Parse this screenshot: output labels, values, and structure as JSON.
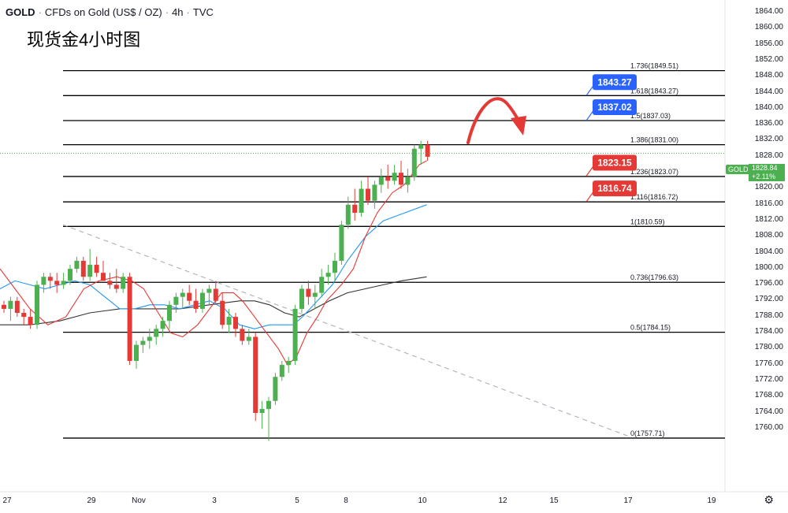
{
  "header": {
    "symbol": "GOLD",
    "name": "CFDs on Gold (US$ / OZ)",
    "interval": "4h",
    "source": "TVC",
    "title_cn": "现货金4小时图"
  },
  "price_axis": {
    "labels": [
      "1864.00",
      "1860.00",
      "1856.00",
      "1852.00",
      "1848.00",
      "1844.00",
      "1840.00",
      "1836.00",
      "1832.00",
      "1828.00",
      "1824.00",
      "1820.00",
      "1816.00",
      "1812.00",
      "1808.00",
      "1804.00",
      "1800.00",
      "1796.00",
      "1792.00",
      "1788.00",
      "1784.00",
      "1780.00",
      "1776.00",
      "1772.00",
      "1768.00",
      "1764.00",
      "1760.00"
    ],
    "last_symbol": "GOLD",
    "last_price": "1828.84",
    "last_change": "+2.11%"
  },
  "time_axis": {
    "labels": [
      "27",
      "29",
      "Nov",
      "3",
      "5",
      "8",
      "10",
      "12",
      "15",
      "17",
      "19"
    ]
  },
  "colors": {
    "up": "#4caf50",
    "down": "#e53935",
    "fib_line": "#000000",
    "ma_red": "#e53935",
    "ma_blue": "#2196f3",
    "ma_black": "#333333",
    "blue_tag": "#2962ff",
    "red_tag": "#e53935",
    "arrow": "#e53935"
  },
  "chart_data": {
    "type": "candlestick",
    "title": "现货金4小时图",
    "y_range": [
      1756,
      1866
    ],
    "fib_levels": [
      {
        "ratio": "0",
        "price": 1757.71,
        "label": "0(1757.71)"
      },
      {
        "ratio": "0.5",
        "price": 1784.15,
        "label": "0.5(1784.15)"
      },
      {
        "ratio": "0.736",
        "price": 1796.63,
        "label": "0.736(1796.63)"
      },
      {
        "ratio": "1",
        "price": 1810.59,
        "label": "1(1810.59)"
      },
      {
        "ratio": "1.116",
        "price": 1816.72,
        "label": "1.116(1816.72)"
      },
      {
        "ratio": "1.236",
        "price": 1823.07,
        "label": "1.236(1823.07)"
      },
      {
        "ratio": "1.386",
        "price": 1831.0,
        "label": "1.386(1831.00)"
      },
      {
        "ratio": "1.5",
        "price": 1837.03,
        "label": "1.5(1837.03)"
      },
      {
        "ratio": "1.618",
        "price": 1843.27,
        "label": "1.618(1843.27)"
      },
      {
        "ratio": "1.736",
        "price": 1849.51,
        "label": "1.736(1849.51)"
      }
    ],
    "price_tags": [
      {
        "text": "1843.27",
        "price": 1843.27,
        "color": "blue"
      },
      {
        "text": "1837.02",
        "price": 1837.02,
        "color": "blue"
      },
      {
        "text": "1823.15",
        "price": 1823.15,
        "color": "red"
      },
      {
        "text": "1816.74",
        "price": 1816.74,
        "color": "red"
      }
    ],
    "candles": [
      [
        1791,
        1792,
        1789,
        1790
      ],
      [
        1790,
        1793,
        1787,
        1792
      ],
      [
        1792,
        1793,
        1788,
        1789
      ],
      [
        1789,
        1790,
        1786,
        1788
      ],
      [
        1788,
        1790,
        1785,
        1786
      ],
      [
        1786,
        1797,
        1785,
        1796
      ],
      [
        1796,
        1799,
        1794,
        1798
      ],
      [
        1798,
        1799,
        1795,
        1797
      ],
      [
        1797,
        1799,
        1794,
        1796
      ],
      [
        1796,
        1799,
        1795,
        1797
      ],
      [
        1797,
        1801,
        1796,
        1800
      ],
      [
        1800,
        1803,
        1799,
        1802
      ],
      [
        1802,
        1803,
        1797,
        1798
      ],
      [
        1798,
        1805,
        1797,
        1801
      ],
      [
        1801,
        1803,
        1798,
        1799
      ],
      [
        1799,
        1802,
        1797,
        1797
      ],
      [
        1797,
        1799,
        1795,
        1796
      ],
      [
        1796,
        1800,
        1794,
        1795
      ],
      [
        1795,
        1799,
        1794,
        1798
      ],
      [
        1798,
        1799,
        1776,
        1777
      ],
      [
        1777,
        1782,
        1775,
        1781
      ],
      [
        1781,
        1783,
        1779,
        1782
      ],
      [
        1782,
        1785,
        1780,
        1783
      ],
      [
        1783,
        1786,
        1781,
        1785
      ],
      [
        1785,
        1788,
        1783,
        1787
      ],
      [
        1787,
        1792,
        1785,
        1791
      ],
      [
        1791,
        1794,
        1789,
        1793
      ],
      [
        1793,
        1795,
        1790,
        1794
      ],
      [
        1794,
        1796,
        1791,
        1792
      ],
      [
        1792,
        1795,
        1789,
        1790
      ],
      [
        1790,
        1795,
        1789,
        1794
      ],
      [
        1794,
        1796,
        1791,
        1795
      ],
      [
        1795,
        1797,
        1791,
        1792
      ],
      [
        1792,
        1794,
        1785,
        1786
      ],
      [
        1786,
        1790,
        1784,
        1788
      ],
      [
        1788,
        1789,
        1783,
        1785
      ],
      [
        1785,
        1786,
        1781,
        1782
      ],
      [
        1782,
        1785,
        1781,
        1783
      ],
      [
        1783,
        1784,
        1762,
        1764
      ],
      [
        1764,
        1767,
        1760,
        1765
      ],
      [
        1765,
        1768,
        1757,
        1767
      ],
      [
        1767,
        1774,
        1766,
        1773
      ],
      [
        1773,
        1777,
        1772,
        1776
      ],
      [
        1776,
        1778,
        1774,
        1777
      ],
      [
        1777,
        1791,
        1776,
        1790
      ],
      [
        1790,
        1796,
        1789,
        1795
      ],
      [
        1795,
        1797,
        1791,
        1793
      ],
      [
        1793,
        1796,
        1790,
        1794
      ],
      [
        1794,
        1800,
        1793,
        1798
      ],
      [
        1798,
        1801,
        1796,
        1799
      ],
      [
        1799,
        1804,
        1797,
        1802
      ],
      [
        1802,
        1812,
        1801,
        1811
      ],
      [
        1811,
        1818,
        1810,
        1816
      ],
      [
        1816,
        1820,
        1812,
        1814
      ],
      [
        1814,
        1822,
        1813,
        1820
      ],
      [
        1820,
        1823,
        1816,
        1817
      ],
      [
        1817,
        1822,
        1815,
        1821
      ],
      [
        1821,
        1825,
        1819,
        1823
      ],
      [
        1823,
        1826,
        1820,
        1822
      ],
      [
        1822,
        1826,
        1821,
        1824
      ],
      [
        1824,
        1827,
        1820,
        1821
      ],
      [
        1821,
        1825,
        1819,
        1823
      ],
      [
        1823,
        1831,
        1822,
        1830
      ],
      [
        1830,
        1832,
        1826,
        1831
      ],
      [
        1831,
        1832,
        1827,
        1828
      ]
    ],
    "ma_red": [
      [
        1800,
        0
      ],
      [
        1795,
        10
      ],
      [
        1790,
        20
      ],
      [
        1786,
        32
      ],
      [
        1788,
        44
      ],
      [
        1795,
        56
      ],
      [
        1797,
        66
      ],
      [
        1798,
        78
      ],
      [
        1797,
        88
      ],
      [
        1795,
        96
      ],
      [
        1790,
        104
      ],
      [
        1784,
        114
      ],
      [
        1783,
        122
      ],
      [
        1786,
        132
      ],
      [
        1790,
        140
      ],
      [
        1794,
        148
      ],
      [
        1794,
        156
      ],
      [
        1792,
        162
      ],
      [
        1788,
        170
      ],
      [
        1784,
        178
      ],
      [
        1780,
        186
      ],
      [
        1776,
        192
      ],
      [
        1778,
        198
      ],
      [
        1784,
        205
      ],
      [
        1788,
        212
      ],
      [
        1792,
        218
      ],
      [
        1796,
        228
      ],
      [
        1800,
        236
      ],
      [
        1808,
        244
      ],
      [
        1814,
        252
      ],
      [
        1819,
        262
      ],
      [
        1821,
        270
      ],
      [
        1826,
        280
      ],
      [
        1827,
        285
      ]
    ],
    "ma_blue": [
      [
        1795,
        0
      ],
      [
        1797,
        10
      ],
      [
        1796,
        20
      ],
      [
        1795,
        30
      ],
      [
        1796,
        40
      ],
      [
        1797,
        50
      ],
      [
        1796,
        60
      ],
      [
        1793,
        70
      ],
      [
        1790,
        80
      ],
      [
        1790,
        90
      ],
      [
        1791,
        100
      ],
      [
        1791,
        110
      ],
      [
        1790,
        120
      ],
      [
        1791,
        130
      ],
      [
        1792,
        140
      ],
      [
        1790,
        150
      ],
      [
        1786,
        160
      ],
      [
        1785,
        170
      ],
      [
        1786,
        180
      ],
      [
        1786,
        190
      ],
      [
        1786,
        196
      ],
      [
        1788,
        202
      ],
      [
        1792,
        212
      ],
      [
        1796,
        222
      ],
      [
        1802,
        232
      ],
      [
        1808,
        244
      ],
      [
        1812,
        256
      ],
      [
        1816,
        285
      ]
    ],
    "ma_black": [
      [
        1786,
        0
      ],
      [
        1786,
        20
      ],
      [
        1787,
        40
      ],
      [
        1789,
        60
      ],
      [
        1790,
        80
      ],
      [
        1790,
        100
      ],
      [
        1790,
        120
      ],
      [
        1791,
        140
      ],
      [
        1792,
        160
      ],
      [
        1792,
        170
      ],
      [
        1791,
        180
      ],
      [
        1789,
        190
      ],
      [
        1788,
        200
      ],
      [
        1790,
        210
      ],
      [
        1792,
        220
      ],
      [
        1794,
        232
      ],
      [
        1795,
        244
      ],
      [
        1796,
        256
      ],
      [
        1797,
        268
      ],
      [
        1798,
        285
      ]
    ],
    "trendline": {
      "from": [
        1811,
        42
      ],
      "to": [
        1758,
        400
      ]
    },
    "xlabel": "",
    "ylabel": "",
    "grid": false
  }
}
